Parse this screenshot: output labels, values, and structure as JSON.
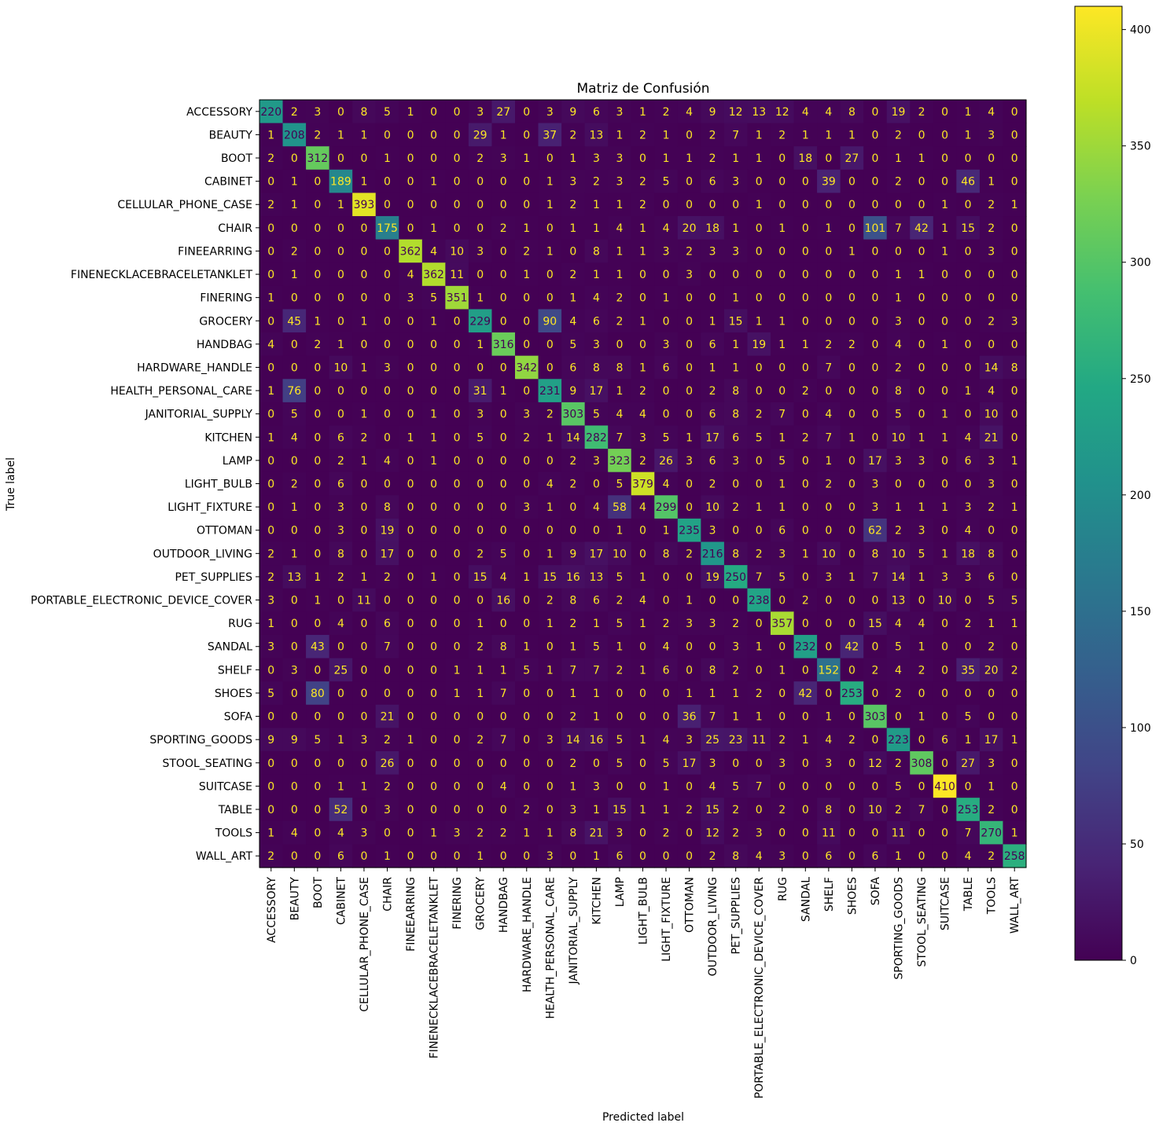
{
  "chart_data": {
    "type": "heatmap",
    "title": "Matriz de Confusión",
    "xlabel": "Predicted label",
    "ylabel": "True label",
    "labels": [
      "ACCESSORY",
      "BEAUTY",
      "BOOT",
      "CABINET",
      "CELLULAR_PHONE_CASE",
      "CHAIR",
      "FINEEARRING",
      "FINENECKLACEBRACELETANKLET",
      "FINERING",
      "GROCERY",
      "HANDBAG",
      "HARDWARE_HANDLE",
      "HEALTH_PERSONAL_CARE",
      "JANITORIAL_SUPPLY",
      "KITCHEN",
      "LAMP",
      "LIGHT_BULB",
      "LIGHT_FIXTURE",
      "OTTOMAN",
      "OUTDOOR_LIVING",
      "PET_SUPPLIES",
      "PORTABLE_ELECTRONIC_DEVICE_COVER",
      "RUG",
      "SANDAL",
      "SHELF",
      "SHOES",
      "SOFA",
      "SPORTING_GOODS",
      "STOOL_SEATING",
      "SUITCASE",
      "TABLE",
      "TOOLS",
      "WALL_ART"
    ],
    "matrix": [
      [
        220,
        2,
        3,
        0,
        8,
        5,
        1,
        0,
        0,
        3,
        27,
        0,
        3,
        9,
        6,
        3,
        1,
        2,
        4,
        9,
        12,
        13,
        12,
        4,
        4,
        8,
        0,
        19,
        2,
        0,
        1,
        4,
        0
      ],
      [
        1,
        208,
        2,
        1,
        1,
        0,
        0,
        0,
        0,
        29,
        1,
        0,
        37,
        2,
        13,
        1,
        2,
        1,
        0,
        2,
        7,
        1,
        2,
        1,
        1,
        1,
        0,
        2,
        0,
        0,
        1,
        3,
        0
      ],
      [
        2,
        0,
        312,
        0,
        0,
        1,
        0,
        0,
        0,
        2,
        3,
        1,
        0,
        1,
        3,
        3,
        0,
        1,
        1,
        2,
        1,
        1,
        0,
        18,
        0,
        27,
        0,
        1,
        1,
        0,
        0,
        0,
        0
      ],
      [
        0,
        1,
        0,
        189,
        1,
        0,
        0,
        1,
        0,
        0,
        0,
        0,
        1,
        3,
        2,
        3,
        2,
        5,
        0,
        6,
        3,
        0,
        0,
        0,
        39,
        0,
        0,
        2,
        0,
        0,
        46,
        1,
        0
      ],
      [
        2,
        1,
        0,
        1,
        393,
        0,
        0,
        0,
        0,
        0,
        0,
        0,
        1,
        2,
        1,
        1,
        2,
        0,
        0,
        0,
        0,
        1,
        0,
        0,
        0,
        0,
        0,
        0,
        0,
        1,
        0,
        2,
        1
      ],
      [
        0,
        0,
        0,
        0,
        0,
        175,
        0,
        1,
        0,
        0,
        2,
        1,
        0,
        1,
        1,
        4,
        1,
        4,
        20,
        18,
        1,
        0,
        1,
        0,
        1,
        0,
        101,
        7,
        42,
        1,
        15,
        2,
        0
      ],
      [
        0,
        2,
        0,
        0,
        0,
        0,
        362,
        4,
        10,
        3,
        0,
        2,
        1,
        0,
        8,
        1,
        1,
        3,
        2,
        3,
        3,
        0,
        0,
        0,
        0,
        1,
        0,
        0,
        0,
        1,
        0,
        3,
        0
      ],
      [
        0,
        1,
        0,
        0,
        0,
        0,
        4,
        362,
        11,
        0,
        0,
        1,
        0,
        2,
        1,
        1,
        0,
        0,
        3,
        0,
        0,
        0,
        0,
        0,
        0,
        0,
        0,
        1,
        1,
        0,
        0,
        0,
        0
      ],
      [
        1,
        0,
        0,
        0,
        0,
        0,
        3,
        5,
        351,
        1,
        0,
        0,
        0,
        1,
        4,
        2,
        0,
        1,
        0,
        0,
        1,
        0,
        0,
        0,
        0,
        0,
        0,
        1,
        0,
        0,
        0,
        0,
        0
      ],
      [
        0,
        45,
        1,
        0,
        1,
        0,
        0,
        1,
        0,
        229,
        0,
        0,
        90,
        4,
        6,
        2,
        1,
        0,
        0,
        1,
        15,
        1,
        1,
        0,
        0,
        0,
        0,
        3,
        0,
        0,
        0,
        2,
        3
      ],
      [
        4,
        0,
        2,
        1,
        0,
        0,
        0,
        0,
        0,
        1,
        316,
        0,
        0,
        5,
        3,
        0,
        0,
        3,
        0,
        6,
        1,
        19,
        1,
        1,
        2,
        2,
        0,
        4,
        0,
        1,
        0,
        0,
        0
      ],
      [
        0,
        0,
        0,
        10,
        1,
        3,
        0,
        0,
        0,
        0,
        0,
        342,
        0,
        6,
        8,
        8,
        1,
        6,
        0,
        1,
        1,
        0,
        0,
        0,
        7,
        0,
        0,
        2,
        0,
        0,
        0,
        14,
        8
      ],
      [
        1,
        76,
        0,
        0,
        0,
        0,
        0,
        0,
        0,
        31,
        1,
        0,
        231,
        9,
        17,
        1,
        2,
        0,
        0,
        2,
        8,
        0,
        0,
        2,
        0,
        0,
        0,
        8,
        0,
        0,
        1,
        4,
        0
      ],
      [
        0,
        5,
        0,
        0,
        1,
        0,
        0,
        1,
        0,
        3,
        0,
        3,
        2,
        303,
        5,
        4,
        4,
        0,
        0,
        6,
        8,
        2,
        7,
        0,
        4,
        0,
        0,
        5,
        0,
        1,
        0,
        10,
        0
      ],
      [
        1,
        4,
        0,
        6,
        2,
        0,
        1,
        1,
        0,
        5,
        0,
        2,
        1,
        14,
        282,
        7,
        3,
        5,
        1,
        17,
        6,
        5,
        1,
        2,
        7,
        1,
        0,
        10,
        1,
        1,
        4,
        21,
        0
      ],
      [
        0,
        0,
        0,
        2,
        1,
        4,
        0,
        1,
        0,
        0,
        0,
        0,
        0,
        2,
        3,
        323,
        2,
        26,
        3,
        6,
        3,
        0,
        5,
        0,
        1,
        0,
        17,
        3,
        3,
        0,
        6,
        3,
        1
      ],
      [
        0,
        2,
        0,
        6,
        0,
        0,
        0,
        0,
        0,
        0,
        0,
        0,
        4,
        2,
        0,
        5,
        379,
        4,
        0,
        2,
        0,
        0,
        1,
        0,
        2,
        0,
        3,
        0,
        0,
        0,
        0,
        3,
        0
      ],
      [
        0,
        1,
        0,
        3,
        0,
        8,
        0,
        0,
        0,
        0,
        0,
        3,
        1,
        0,
        4,
        58,
        4,
        299,
        0,
        10,
        2,
        1,
        1,
        0,
        0,
        0,
        3,
        1,
        1,
        1,
        3,
        2,
        1
      ],
      [
        0,
        0,
        0,
        3,
        0,
        19,
        0,
        0,
        0,
        0,
        0,
        0,
        0,
        0,
        0,
        1,
        0,
        1,
        235,
        3,
        0,
        0,
        6,
        0,
        0,
        0,
        62,
        2,
        3,
        0,
        4,
        0,
        0
      ],
      [
        2,
        1,
        0,
        8,
        0,
        17,
        0,
        0,
        0,
        2,
        5,
        0,
        1,
        9,
        17,
        10,
        0,
        8,
        2,
        216,
        8,
        2,
        3,
        1,
        10,
        0,
        8,
        10,
        5,
        1,
        18,
        8,
        0
      ],
      [
        2,
        13,
        1,
        2,
        1,
        2,
        0,
        1,
        0,
        15,
        4,
        1,
        15,
        16,
        13,
        5,
        1,
        0,
        0,
        19,
        250,
        7,
        5,
        0,
        3,
        1,
        7,
        14,
        1,
        3,
        3,
        6,
        0
      ],
      [
        3,
        0,
        1,
        0,
        11,
        0,
        0,
        0,
        0,
        0,
        16,
        0,
        2,
        8,
        6,
        2,
        4,
        0,
        1,
        0,
        0,
        238,
        0,
        2,
        0,
        0,
        0,
        13,
        0,
        10,
        0,
        5,
        5
      ],
      [
        1,
        0,
        0,
        4,
        0,
        6,
        0,
        0,
        0,
        1,
        0,
        0,
        1,
        2,
        1,
        5,
        1,
        2,
        3,
        3,
        2,
        0,
        357,
        0,
        0,
        0,
        15,
        4,
        4,
        0,
        2,
        1,
        1
      ],
      [
        3,
        0,
        43,
        0,
        0,
        7,
        0,
        0,
        0,
        2,
        8,
        1,
        0,
        1,
        5,
        1,
        0,
        4,
        0,
        0,
        3,
        1,
        0,
        232,
        0,
        42,
        0,
        5,
        1,
        0,
        0,
        2,
        0
      ],
      [
        0,
        3,
        0,
        25,
        0,
        0,
        0,
        0,
        1,
        1,
        1,
        5,
        1,
        7,
        7,
        2,
        1,
        6,
        0,
        8,
        2,
        0,
        1,
        0,
        152,
        0,
        2,
        4,
        2,
        0,
        35,
        20,
        2
      ],
      [
        5,
        0,
        80,
        0,
        0,
        0,
        0,
        0,
        1,
        1,
        7,
        0,
        0,
        1,
        1,
        0,
        0,
        0,
        1,
        1,
        1,
        2,
        0,
        42,
        0,
        253,
        0,
        2,
        0,
        0,
        0,
        0,
        0
      ],
      [
        0,
        0,
        0,
        0,
        0,
        21,
        0,
        0,
        0,
        0,
        0,
        0,
        0,
        2,
        1,
        0,
        0,
        0,
        36,
        7,
        1,
        1,
        0,
        0,
        1,
        0,
        303,
        0,
        1,
        0,
        5,
        0,
        0
      ],
      [
        9,
        9,
        5,
        1,
        3,
        2,
        1,
        0,
        0,
        2,
        7,
        0,
        3,
        14,
        16,
        5,
        1,
        4,
        3,
        25,
        23,
        11,
        2,
        1,
        4,
        2,
        0,
        223,
        0,
        6,
        1,
        17,
        1
      ],
      [
        0,
        0,
        0,
        0,
        0,
        26,
        0,
        0,
        0,
        0,
        0,
        0,
        0,
        2,
        0,
        5,
        0,
        5,
        17,
        3,
        0,
        0,
        3,
        0,
        3,
        0,
        12,
        2,
        308,
        0,
        27,
        3,
        0
      ],
      [
        0,
        0,
        0,
        1,
        1,
        2,
        0,
        0,
        0,
        0,
        4,
        0,
        0,
        1,
        3,
        0,
        0,
        1,
        0,
        4,
        5,
        7,
        0,
        0,
        0,
        0,
        0,
        5,
        0,
        410,
        0,
        1,
        0
      ],
      [
        0,
        0,
        0,
        52,
        0,
        3,
        0,
        0,
        0,
        0,
        0,
        2,
        0,
        3,
        1,
        15,
        1,
        1,
        2,
        15,
        2,
        0,
        2,
        0,
        8,
        0,
        10,
        2,
        7,
        0,
        253,
        2,
        0
      ],
      [
        1,
        4,
        0,
        4,
        3,
        0,
        0,
        1,
        3,
        2,
        2,
        1,
        1,
        8,
        21,
        3,
        0,
        2,
        0,
        12,
        2,
        3,
        0,
        0,
        11,
        0,
        0,
        11,
        0,
        0,
        7,
        270,
        1
      ],
      [
        2,
        0,
        0,
        6,
        0,
        1,
        0,
        0,
        0,
        1,
        0,
        0,
        3,
        0,
        1,
        6,
        0,
        0,
        0,
        2,
        8,
        4,
        3,
        0,
        6,
        0,
        6,
        1,
        0,
        0,
        4,
        2,
        258
      ]
    ],
    "color_range": [
      0,
      410
    ],
    "colorbar_ticks": [
      0,
      50,
      100,
      150,
      200,
      250,
      300,
      350,
      400
    ],
    "colormap": "viridis",
    "text_colors": {
      "light_cells": "#440154",
      "dark_cells": "#fde725"
    }
  }
}
